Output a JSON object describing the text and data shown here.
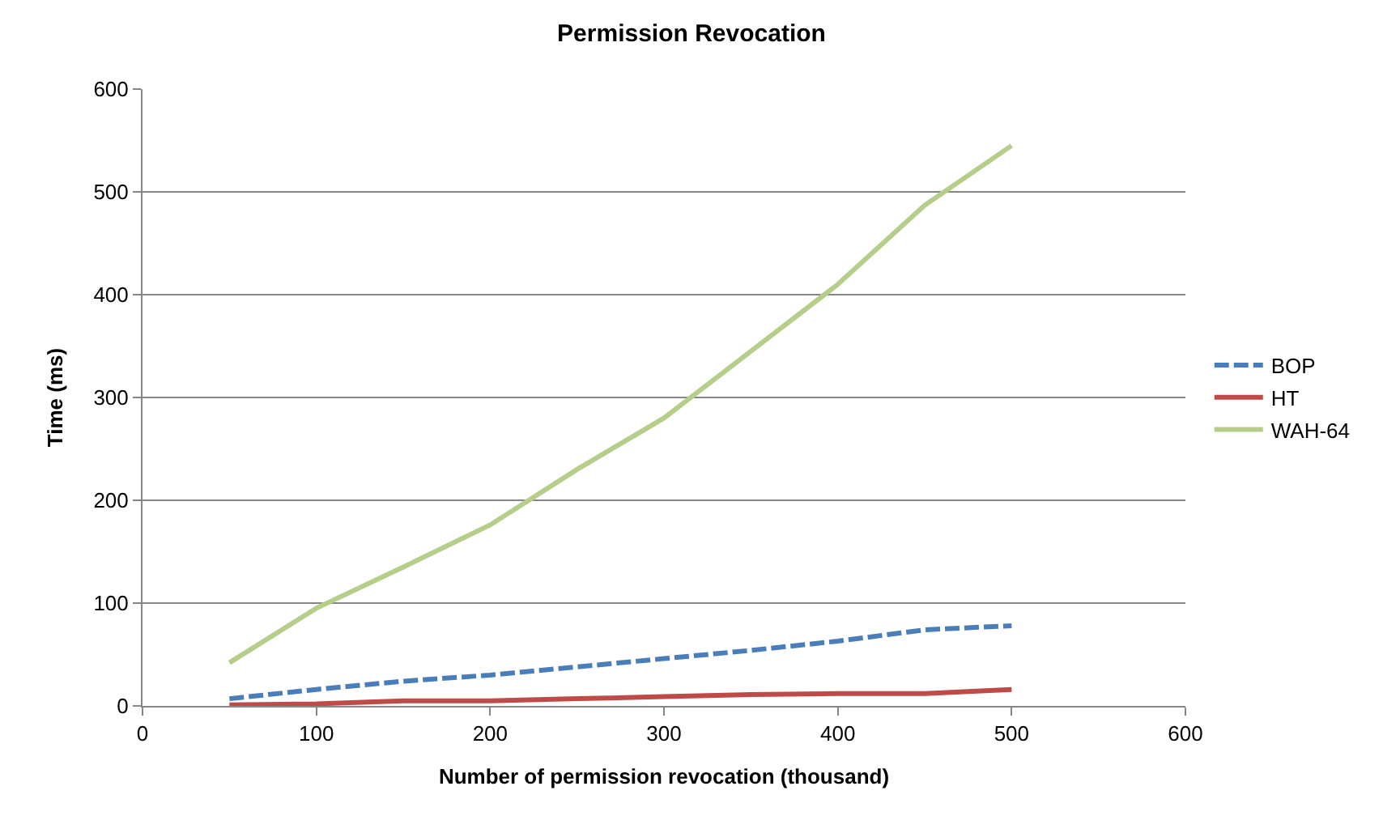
{
  "chart_data": {
    "type": "line",
    "title": "Permission Revocation",
    "xlabel": "Number of permission revocation (thousand)",
    "ylabel": "Time (ms)",
    "x": [
      50,
      100,
      150,
      200,
      250,
      300,
      350,
      400,
      450,
      500
    ],
    "series": [
      {
        "name": "BOP",
        "color": "#4a7ebb",
        "line_style": "dashed",
        "values": [
          7,
          16,
          24,
          30,
          38,
          46,
          54,
          63,
          74,
          78
        ]
      },
      {
        "name": "HT",
        "color": "#be4b48",
        "line_style": "solid",
        "values": [
          1,
          2,
          5,
          5,
          7,
          9,
          11,
          12,
          12,
          16
        ]
      },
      {
        "name": "WAH-64",
        "color": "#b5cf8a",
        "line_style": "solid",
        "values": [
          42,
          95,
          135,
          176,
          230,
          280,
          345,
          410,
          487,
          545
        ]
      }
    ],
    "xlim": [
      0,
      600
    ],
    "xticks": [
      0,
      100,
      200,
      300,
      400,
      500,
      600
    ],
    "ylim": [
      0,
      600
    ],
    "yticks": [
      0,
      100,
      200,
      300,
      400,
      500,
      600
    ],
    "grid": "y",
    "legend": "right",
    "marker": "none"
  }
}
